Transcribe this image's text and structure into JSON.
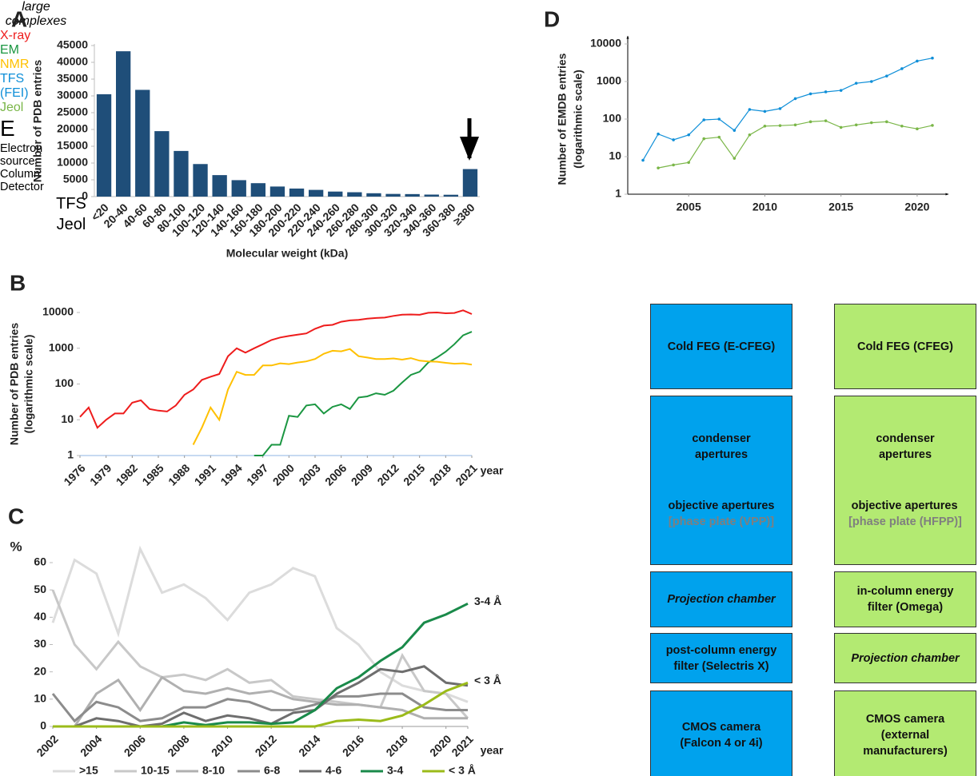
{
  "chart_data": [
    {
      "panel": "A",
      "type": "bar",
      "ylabel": "Number of PDB entries",
      "xlabel": "Molecular weight (kDa)",
      "annotation": "large complexes",
      "categories": [
        "<20",
        "20-40",
        "40-60",
        "60-80",
        "80-100",
        "100-120",
        "120-140",
        "140-160",
        "160-180",
        "180-200",
        "200-220",
        "220-240",
        "240-260",
        "260-280",
        "280-300",
        "300-320",
        "320-340",
        "340-360",
        "360-380",
        "≥380"
      ],
      "values": [
        30500,
        43300,
        31800,
        19500,
        13600,
        9700,
        6400,
        4900,
        4000,
        3000,
        2400,
        2000,
        1500,
        1300,
        1000,
        800,
        750,
        600,
        550,
        8200
      ],
      "color": "#1f4e79",
      "ylim": [
        0,
        45000
      ],
      "yticks": [
        0,
        5000,
        10000,
        15000,
        20000,
        25000,
        30000,
        35000,
        40000,
        45000
      ]
    },
    {
      "panel": "B",
      "type": "line",
      "log_y": true,
      "ylabel": [
        "Number of PDB entries",
        "(logarithmic scale)"
      ],
      "xlabel": "year",
      "legend": "line-end",
      "x": [
        1976,
        1977,
        1978,
        1979,
        1980,
        1981,
        1982,
        1983,
        1984,
        1985,
        1986,
        1987,
        1988,
        1989,
        1990,
        1991,
        1992,
        1993,
        1994,
        1995,
        1996,
        1997,
        1998,
        1999,
        2000,
        2001,
        2002,
        2003,
        2004,
        2005,
        2006,
        2007,
        2008,
        2009,
        2010,
        2011,
        2012,
        2013,
        2014,
        2015,
        2016,
        2017,
        2018,
        2019,
        2020,
        2021
      ],
      "xlim": [
        1976,
        2021
      ],
      "xticks": [
        1976,
        1979,
        1982,
        1985,
        1988,
        1991,
        1994,
        1997,
        2000,
        2003,
        2006,
        2009,
        2012,
        2015,
        2018,
        2021
      ],
      "ylim": [
        1,
        10000
      ],
      "yticks": [
        1,
        10,
        100,
        1000,
        10000
      ],
      "series": [
        {
          "name": "X-ray",
          "color": "#ee1c1c",
          "values": [
            12,
            22,
            6,
            10,
            15,
            15,
            30,
            35,
            20,
            18,
            17,
            25,
            50,
            70,
            130,
            160,
            190,
            600,
            1000,
            750,
            1000,
            1300,
            1700,
            2000,
            2200,
            2400,
            2600,
            3500,
            4300,
            4500,
            5500,
            6000,
            6200,
            6700,
            7000,
            7200,
            8000,
            8700,
            8800,
            8600,
            9800,
            10000,
            9500,
            9700,
            11500,
            9000
          ]
        },
        {
          "name": "EM",
          "color": "#1a9641",
          "values": [
            null,
            null,
            null,
            null,
            null,
            null,
            null,
            null,
            null,
            null,
            null,
            null,
            null,
            null,
            null,
            null,
            null,
            null,
            null,
            null,
            1,
            1,
            2,
            2,
            13,
            12,
            25,
            27,
            15,
            23,
            27,
            20,
            42,
            45,
            55,
            50,
            65,
            110,
            180,
            220,
            400,
            550,
            800,
            1300,
            2300,
            2900
          ]
        },
        {
          "name": "NMR",
          "color": "#ffc000",
          "values": [
            null,
            null,
            null,
            null,
            null,
            null,
            null,
            null,
            null,
            null,
            null,
            null,
            null,
            2,
            6,
            22,
            10,
            70,
            220,
            180,
            180,
            330,
            330,
            380,
            360,
            400,
            430,
            500,
            700,
            850,
            820,
            950,
            600,
            550,
            500,
            500,
            520,
            480,
            530,
            450,
            430,
            420,
            390,
            370,
            380,
            350
          ]
        }
      ]
    },
    {
      "panel": "C",
      "type": "line",
      "ylabel": "%",
      "xlabel": "year",
      "legend": "bottom",
      "x": [
        2002,
        2003,
        2004,
        2005,
        2006,
        2007,
        2008,
        2009,
        2010,
        2011,
        2012,
        2013,
        2014,
        2015,
        2016,
        2017,
        2018,
        2019,
        2020,
        2021
      ],
      "xlim": [
        2002,
        2021
      ],
      "xticks": [
        2002,
        2004,
        2006,
        2008,
        2010,
        2012,
        2014,
        2016,
        2018,
        2020,
        2021
      ],
      "ylim": [
        0,
        60
      ],
      "yticks": [
        0,
        10,
        20,
        30,
        40,
        50,
        60
      ],
      "annotations": [
        {
          "text": "3-4 Å",
          "color": "#1a8a4a"
        },
        {
          "text": "< 3 Å",
          "color": "#9bbb1a"
        }
      ],
      "series": [
        {
          "name": ">15",
          "color": "#dcdcdc",
          "values": [
            38,
            61,
            56,
            34,
            65,
            49,
            52,
            47,
            39,
            49,
            52,
            58,
            55,
            36,
            30,
            20,
            15,
            13,
            12,
            9
          ]
        },
        {
          "name": "10-15",
          "color": "#c8c8c8",
          "values": [
            50,
            30,
            21,
            31,
            22,
            18,
            19,
            17,
            21,
            16,
            17,
            11,
            10,
            9,
            8,
            7,
            26,
            13,
            12,
            3
          ]
        },
        {
          "name": "8-10",
          "color": "#b0b0b0",
          "values": [
            0,
            0,
            12,
            17,
            6,
            18,
            13,
            12,
            14,
            12,
            13,
            10,
            9,
            8,
            8,
            7,
            6,
            3,
            3,
            3
          ]
        },
        {
          "name": "6-8",
          "color": "#8c8c8c",
          "values": [
            12,
            2,
            9,
            7,
            2,
            3,
            7,
            7,
            10,
            9,
            6,
            6,
            8,
            11,
            11,
            12,
            12,
            7,
            6,
            6
          ]
        },
        {
          "name": "4-6",
          "color": "#6e6e6e",
          "values": [
            0,
            0,
            3,
            2,
            0,
            1,
            5,
            2,
            4,
            3,
            1,
            5,
            6,
            12,
            16,
            21,
            20,
            22,
            16,
            15
          ]
        },
        {
          "name": "3-4",
          "color": "#1a8a4a",
          "values": [
            0,
            0,
            0,
            0,
            0,
            0,
            1.5,
            0.5,
            1.5,
            1.5,
            1,
            1.5,
            6,
            14,
            18,
            24,
            29,
            38,
            41,
            45
          ]
        },
        {
          "name": "< 3 Å",
          "color": "#9bbb1a",
          "values": [
            0,
            0,
            0,
            0,
            0,
            0,
            0,
            0,
            0,
            0,
            0,
            0,
            0,
            2,
            2.5,
            2,
            4,
            8,
            13,
            16
          ]
        }
      ]
    },
    {
      "panel": "D",
      "type": "line",
      "log_y": true,
      "markers": true,
      "ylabel": [
        "Number of EMDB entries",
        "(logarithmic scale)"
      ],
      "legend": "line-end",
      "x": [
        2002,
        2003,
        2004,
        2005,
        2006,
        2007,
        2008,
        2009,
        2010,
        2011,
        2012,
        2013,
        2014,
        2015,
        2016,
        2017,
        2018,
        2019,
        2020,
        2021
      ],
      "xlim": [
        2001,
        2022
      ],
      "xticks": [
        2005,
        2010,
        2015,
        2020
      ],
      "ylim": [
        1,
        10000
      ],
      "yticks": [
        1,
        10,
        100,
        1000,
        10000
      ],
      "series": [
        {
          "name": "TFS (FEI)",
          "color": "#0f8fd8",
          "values": [
            8,
            40,
            28,
            38,
            95,
            100,
            50,
            180,
            160,
            190,
            350,
            470,
            530,
            580,
            900,
            1000,
            1400,
            2200,
            3500,
            4200
          ]
        },
        {
          "name": "Jeol",
          "color": "#7ab648",
          "values": [
            null,
            5,
            6,
            7,
            30,
            33,
            9,
            38,
            65,
            67,
            70,
            85,
            90,
            60,
            70,
            80,
            85,
            65,
            55,
            68
          ]
        }
      ]
    }
  ],
  "panel_e": {
    "panel": "E",
    "rows": [
      "Electron source",
      "Column",
      "Detector"
    ],
    "columns": [
      {
        "name": "TFS",
        "color": "#00a2ed",
        "blocks": [
          {
            "items": [
              "Cold FEG (E-CFEG)"
            ]
          },
          {
            "items": [
              "condenser apertures",
              "objective apertures"
            ],
            "note": "[phase plate (VPP)]"
          },
          {
            "items": [
              "Projection chamber"
            ],
            "italic": true
          },
          {
            "items": [
              "post-column energy filter (Selectris X)"
            ]
          },
          {
            "items": [
              "CMOS camera (Falcon 4 or 4i)"
            ]
          }
        ]
      },
      {
        "name": "Jeol",
        "color": "#b3ea72",
        "blocks": [
          {
            "items": [
              "Cold FEG (CFEG)"
            ]
          },
          {
            "items": [
              "condenser apertures",
              "objective apertures"
            ],
            "note": "[phase plate (HFPP)]"
          },
          {
            "items": [
              "in-column energy filter (Omega)"
            ]
          },
          {
            "items": [
              "Projection chamber"
            ],
            "italic": true
          },
          {
            "items": [
              "CMOS camera (external manufacturers)"
            ]
          }
        ]
      }
    ]
  }
}
